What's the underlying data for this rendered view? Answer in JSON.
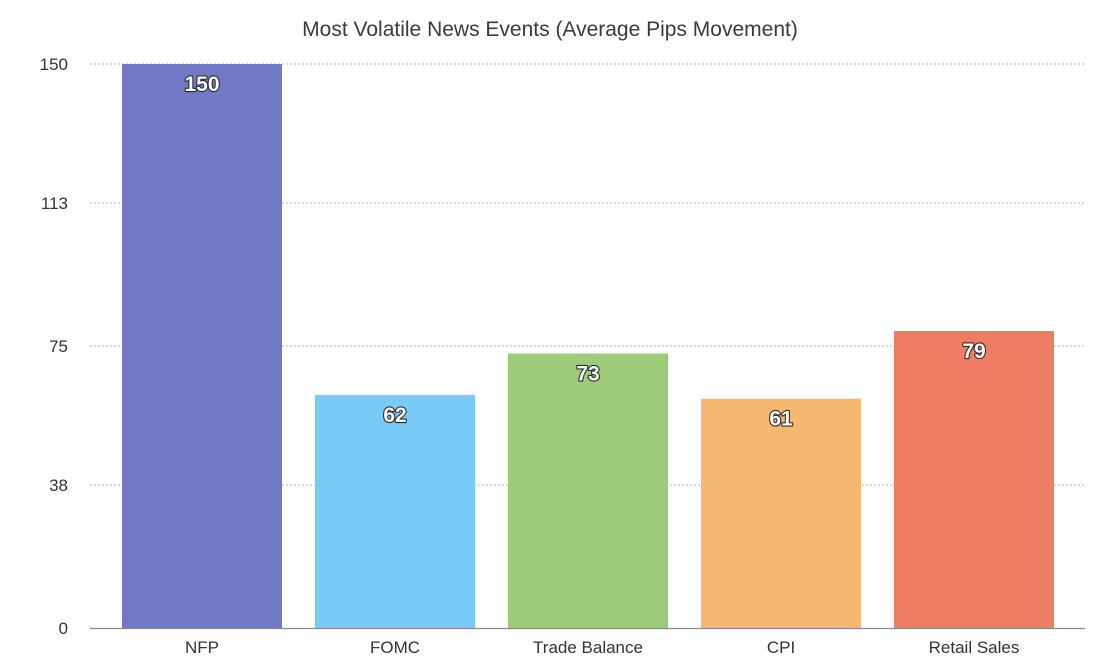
{
  "chart_data": {
    "type": "bar",
    "title": "Most Volatile News Events (Average Pips Movement)",
    "categories": [
      "NFP",
      "FOMC",
      "Trade Balance",
      "CPI",
      "Retail Sales"
    ],
    "values": [
      150,
      62,
      73,
      61,
      79
    ],
    "yticks": [
      "0",
      "38",
      "75",
      "113",
      "150"
    ],
    "ylim": [
      0,
      150
    ],
    "xlabel": "",
    "ylabel": "",
    "grid": true,
    "legend": "none",
    "colors": [
      "#7179c6",
      "#79cbf7",
      "#9ccc78",
      "#f5b870",
      "#ee7d63"
    ]
  }
}
